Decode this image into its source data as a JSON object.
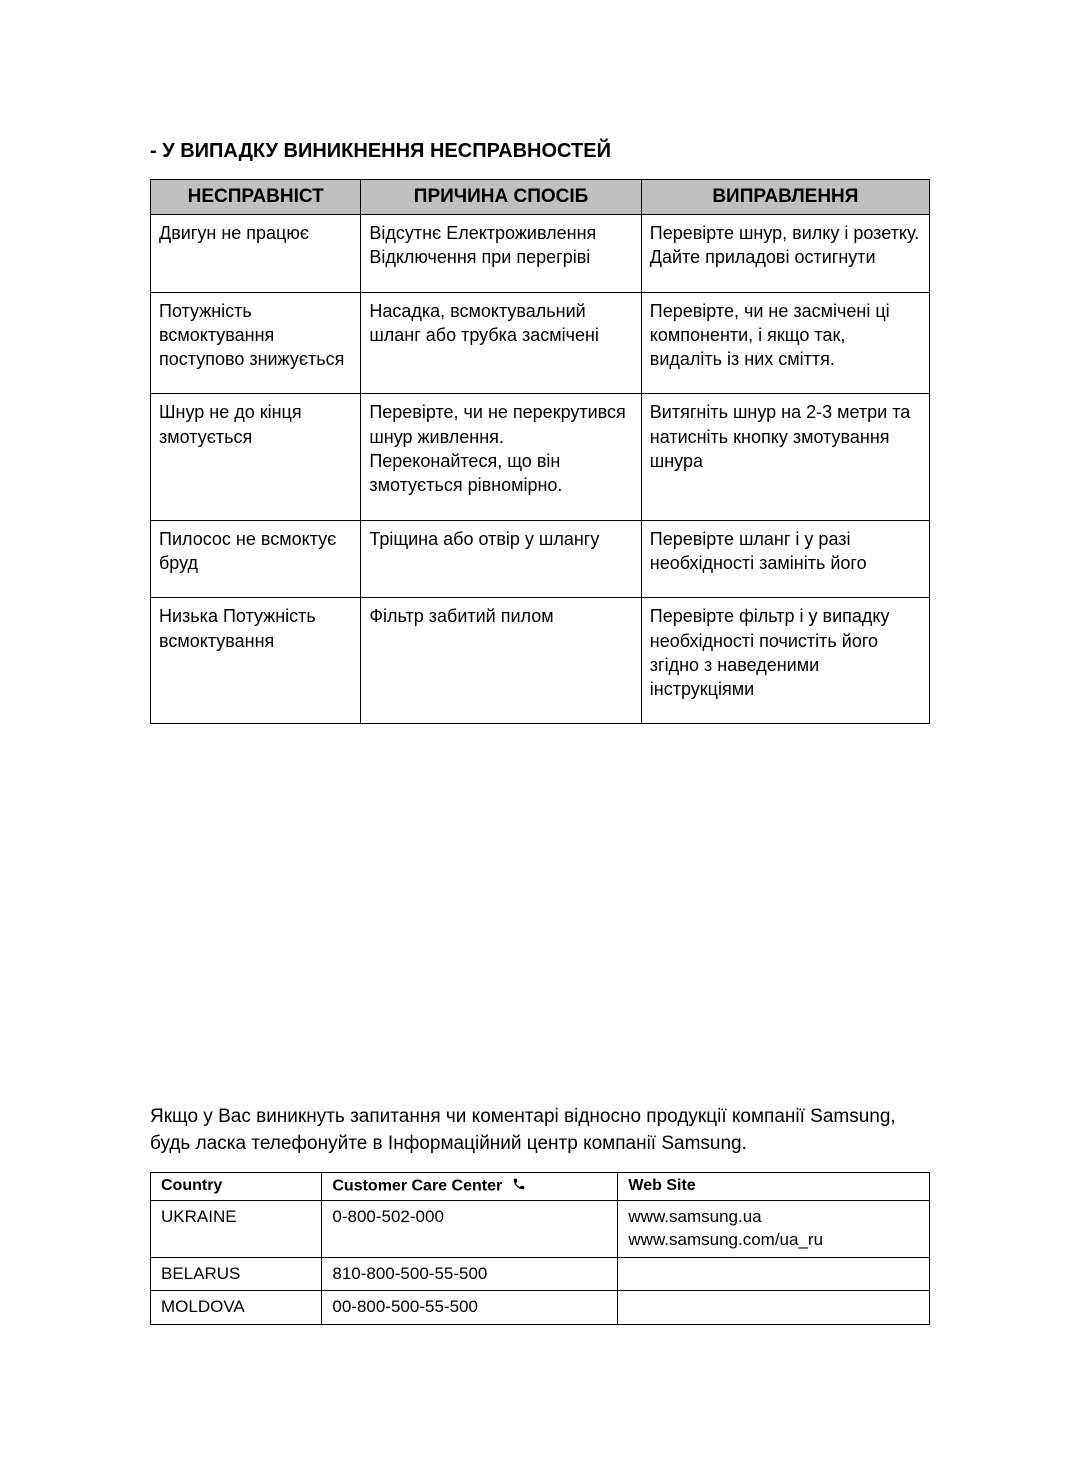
{
  "title": "- У ВИПАДКУ ВИНИКНЕННЯ НЕСПРАВНОСТЕЙ",
  "troubleshoot": {
    "headers": {
      "problem": "НЕСПРАВНІСТ",
      "cause": "ПРИЧИНА СПОСІБ",
      "fix": "ВИПРАВЛЕННЯ"
    },
    "rows": [
      {
        "problem": "Двигун не працює",
        "cause": "Відсутнє Електроживлення\nВідключення при перегріві",
        "fix": "Перевірте шнур, вилку і розетку.\nДайте приладові остигнути",
        "fix_class": "tight"
      },
      {
        "problem": "Потужність всмоктування поступово знижується",
        "problem_class": "tight",
        "cause": "Насадка, всмоктувальний шланг або трубка засмічені",
        "cause_class": "tight",
        "fix": "Перевірте, чи не засмічені ці компоненти, і якщо так, видаліть із них сміття.",
        "fix_class": "tighter"
      },
      {
        "problem": "Шнур не до кінця змотується",
        "cause": "Перевірте, чи не перекрутився шнур живлення. Переконайтеся, що він змотується рівномірно.",
        "cause_class": "tighter",
        "fix": "Витягніть шнур на 2-3 метри та натисніть кнопку змотування шнура",
        "fix_class": "tight"
      },
      {
        "problem": "Пилосос не всмоктує бруд",
        "problem_class": "tight",
        "cause": "Тріщина або отвір у шлангу",
        "fix": "Перевірте шланг і у разі необхідності замініть його",
        "fix_class": "tight"
      },
      {
        "problem": "Низька Потужність всмоктування",
        "cause": "Фільтр забитий пилом",
        "fix": "Перевірте фільтр і у випадку необхідності почистіть його згідно з наведеними інструкціями",
        "fix_class": "tight"
      }
    ]
  },
  "contact": {
    "intro": "Якщо у Вас виникнуть запитання чи коментарі відносно продукції компанії Samsung, будь ласка телефонуйте в Інформаційний центр компанії Samsung.",
    "headers": {
      "country": "Country",
      "care": "Customer Care Center",
      "web": "Web Site"
    },
    "rows": [
      {
        "country": "UKRAINE",
        "phone": "0-800-502-000",
        "web": "www.samsung.ua\nwww.samsung.com/ua_ru"
      },
      {
        "country": "BELARUS",
        "phone": "810-800-500-55-500",
        "web": ""
      },
      {
        "country": "MOLDOVA",
        "phone": "00-800-500-55-500",
        "web": ""
      }
    ]
  },
  "colors": {
    "header_bg": "#c0c0c0",
    "border": "#000000",
    "text": "#000000",
    "page_bg": "#ffffff"
  }
}
